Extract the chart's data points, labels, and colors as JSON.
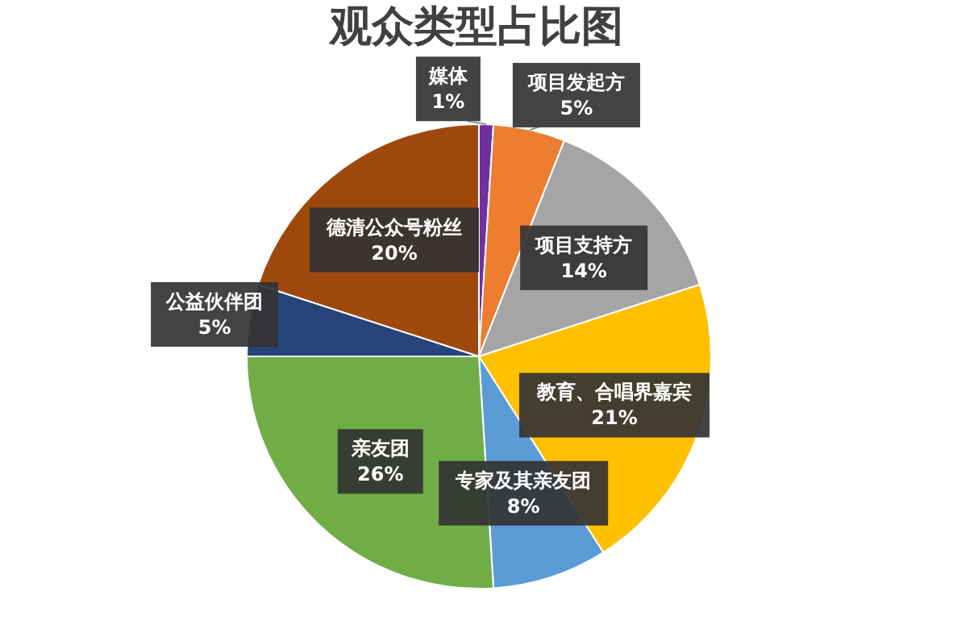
{
  "chart_data": {
    "type": "pie",
    "title": "观众类型占比图",
    "categories": [
      "媒体",
      "项目发起方",
      "项目支持方",
      "教育、合唱界嘉宾",
      "专家及其亲友团",
      "亲友团",
      "公益伙伴团",
      "德清公众号粉丝"
    ],
    "values": [
      1,
      5,
      14,
      21,
      8,
      26,
      5,
      20
    ],
    "colors": [
      "#7030a0",
      "#ed7d31",
      "#a5a5a5",
      "#ffc000",
      "#5b9bd5",
      "#70ad47",
      "#264478",
      "#9e480e"
    ],
    "value_labels": [
      "1%",
      "5%",
      "14%",
      "21%",
      "8%",
      "26%",
      "5%",
      "20%"
    ],
    "legend": false
  }
}
